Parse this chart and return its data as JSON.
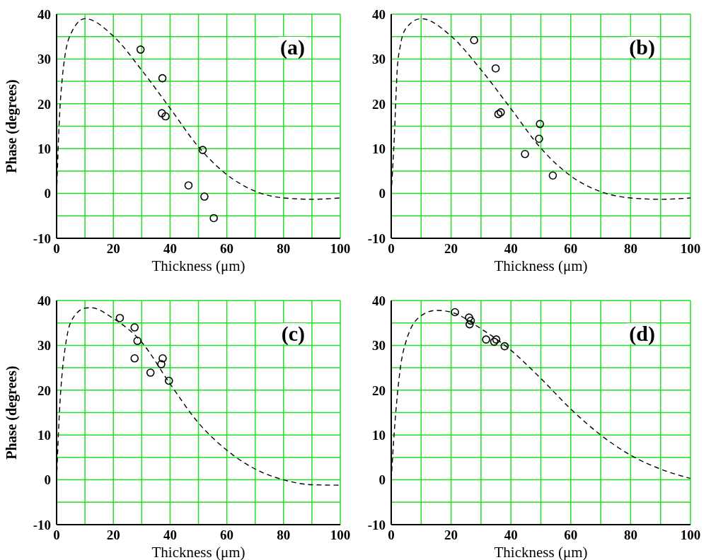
{
  "chart_data": [
    {
      "type": "scatter",
      "annotations": [
        "(a)"
      ],
      "xlabel": "Thickness (μm)",
      "ylabel": "Phase (degrees)",
      "xlim": [
        0,
        100
      ],
      "ylim": [
        -10,
        40
      ],
      "xticks": [
        0,
        {
          "value": 10,
          "label": null
        },
        20,
        {
          "value": 30,
          "label": null
        },
        40,
        {
          "value": 50,
          "label": null
        },
        60,
        {
          "value": 70,
          "label": null
        },
        80,
        {
          "value": 90,
          "label": null
        },
        100
      ],
      "yticks": [
        -10,
        {
          "value": -5,
          "label": null
        },
        0,
        {
          "value": 5,
          "label": null
        },
        10,
        {
          "value": 15,
          "label": null
        },
        20,
        {
          "value": 25,
          "label": null
        },
        30,
        {
          "value": 35,
          "label": null
        },
        40
      ],
      "grid": true,
      "line_style": "dashed",
      "series": [
        {
          "type": "line",
          "color": "#000000",
          "marker": "none",
          "x": [
            0,
            1,
            2,
            3,
            5,
            10,
            20,
            30,
            40,
            50,
            60,
            70,
            80,
            90,
            100
          ],
          "values": [
            0,
            16.9,
            25.7,
            30.9,
            35.6,
            39,
            35.1,
            27.5,
            19,
            10.4,
            4.2,
            0.5,
            -1,
            -1.3,
            -1
          ]
        },
        {
          "type": "scatter",
          "color": "#000000",
          "marker": "circle",
          "x": [
            29.6,
            37.3,
            37.1,
            38.4,
            51.5,
            46.5,
            52.1,
            55.4
          ],
          "values": [
            32.1,
            25.7,
            17.9,
            17.2,
            9.7,
            1.8,
            -0.7,
            -5.5
          ]
        }
      ]
    },
    {
      "type": "scatter",
      "annotations": [
        "(b)"
      ],
      "xlabel": "Thickness (μm)",
      "xlim": [
        0,
        100
      ],
      "ylim": [
        -10,
        40
      ],
      "xticks": [
        0,
        {
          "value": 10,
          "label": null
        },
        20,
        {
          "value": 30,
          "label": null
        },
        40,
        {
          "value": 50,
          "label": null
        },
        60,
        {
          "value": 70,
          "label": null
        },
        80,
        {
          "value": 90,
          "label": null
        },
        100
      ],
      "yticks": [
        -10,
        {
          "value": -5,
          "label": null
        },
        0,
        {
          "value": 5,
          "label": null
        },
        10,
        {
          "value": 15,
          "label": null
        },
        20,
        {
          "value": 25,
          "label": null
        },
        30,
        {
          "value": 35,
          "label": null
        },
        40
      ],
      "grid": true,
      "line_style": "dashed",
      "series": [
        {
          "type": "line",
          "color": "#000000",
          "marker": "none",
          "x": [
            0,
            1,
            2,
            3,
            5,
            10,
            20,
            30,
            40,
            50,
            60,
            70,
            80,
            90,
            100
          ],
          "values": [
            0,
            12.1,
            27.6,
            32.8,
            36.9,
            39,
            35.1,
            27.6,
            18.9,
            10.1,
            3.9,
            0.4,
            -1,
            -1.3,
            -1
          ]
        },
        {
          "type": "scatter",
          "color": "#000000",
          "marker": "circle",
          "x": [
            27.7,
            34.9,
            35.8,
            36.6,
            49.7,
            49.4,
            44.7,
            54
          ],
          "values": [
            34.2,
            27.9,
            17.7,
            18.1,
            15.5,
            12.2,
            8.8,
            4
          ]
        }
      ]
    },
    {
      "type": "scatter",
      "annotations": [
        "(c)"
      ],
      "xlabel": "Thickness (μm)",
      "ylabel": "Phase (degrees)",
      "xlim": [
        0,
        100
      ],
      "ylim": [
        -10,
        40
      ],
      "xticks": [
        0,
        {
          "value": 10,
          "label": null
        },
        20,
        {
          "value": 30,
          "label": null
        },
        40,
        {
          "value": 50,
          "label": null
        },
        60,
        {
          "value": 70,
          "label": null
        },
        80,
        {
          "value": 90,
          "label": null
        },
        100
      ],
      "yticks": [
        -10,
        {
          "value": -5,
          "label": null
        },
        0,
        {
          "value": 5,
          "label": null
        },
        10,
        {
          "value": 15,
          "label": null
        },
        20,
        {
          "value": 25,
          "label": null
        },
        30,
        {
          "value": 35,
          "label": null
        },
        40
      ],
      "grid": true,
      "line_style": "dashed",
      "series": [
        {
          "type": "line",
          "color": "#000000",
          "marker": "none",
          "x": [
            0,
            1,
            2,
            3,
            5,
            10,
            12,
            20,
            30,
            40,
            50,
            60,
            70,
            80,
            90,
            100
          ],
          "values": [
            0,
            15.1,
            24.1,
            29.4,
            35.2,
            38.3,
            38.4,
            36,
            30.7,
            21.4,
            12.7,
            6.6,
            2.4,
            0,
            -1.1,
            -1.2
          ]
        },
        {
          "type": "scatter",
          "color": "#000000",
          "marker": "circle",
          "x": [
            22.3,
            27.5,
            28.5,
            27.5,
            33.1,
            37.4,
            36.9,
            39.6
          ],
          "values": [
            36.1,
            34,
            31,
            27.1,
            23.9,
            27.1,
            25.8,
            22.1
          ]
        }
      ]
    },
    {
      "type": "scatter",
      "annotations": [
        "(d)"
      ],
      "xlabel": "Thickness (μm)",
      "xlim": [
        0,
        100
      ],
      "ylim": [
        -10,
        40
      ],
      "xticks": [
        0,
        {
          "value": 10,
          "label": null
        },
        20,
        {
          "value": 30,
          "label": null
        },
        40,
        {
          "value": 50,
          "label": null
        },
        60,
        {
          "value": 70,
          "label": null
        },
        80,
        {
          "value": 90,
          "label": null
        },
        100
      ],
      "yticks": [
        -10,
        {
          "value": -5,
          "label": null
        },
        0,
        {
          "value": 5,
          "label": null
        },
        10,
        {
          "value": 15,
          "label": null
        },
        20,
        {
          "value": 25,
          "label": null
        },
        30,
        {
          "value": 35,
          "label": null
        },
        40
      ],
      "grid": true,
      "line_style": "dashed",
      "series": [
        {
          "type": "line",
          "color": "#000000",
          "marker": "none",
          "x": [
            0,
            1,
            3,
            5,
            10,
            15,
            20,
            30,
            40,
            50,
            60,
            70,
            80,
            90,
            100
          ],
          "values": [
            0,
            10.5,
            24.7,
            31,
            36.6,
            37.8,
            37.4,
            33.7,
            28.9,
            22.6,
            15.8,
            10,
            5.5,
            2.4,
            0.3
          ]
        },
        {
          "type": "scatter",
          "color": "#000000",
          "marker": "circle",
          "x": [
            21.3,
            26,
            26.6,
            26.2,
            31.7,
            35.1,
            34.4,
            37.9
          ],
          "values": [
            37.4,
            36.2,
            35.5,
            34.7,
            31.3,
            31.3,
            30.8,
            29.8
          ]
        }
      ]
    }
  ]
}
